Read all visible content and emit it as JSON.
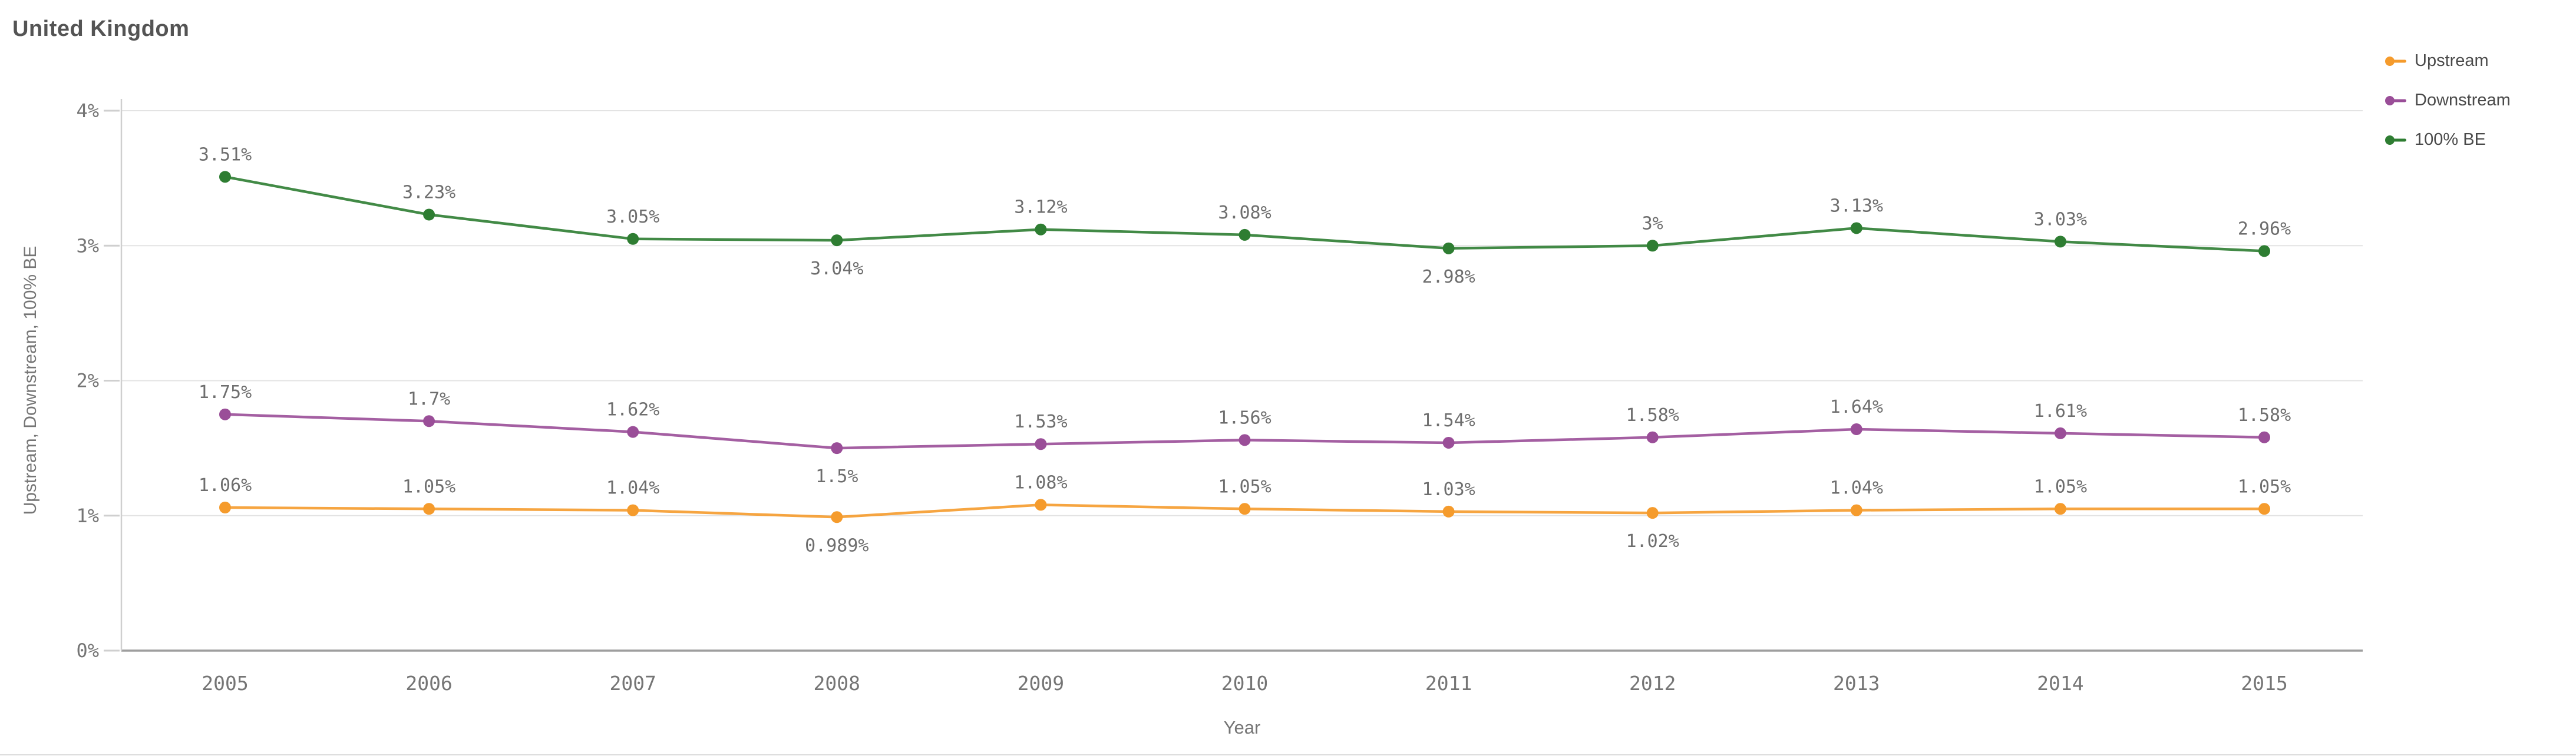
{
  "title": "United Kingdom",
  "chart_data": {
    "type": "line",
    "title": "United Kingdom",
    "xlabel": "Year",
    "ylabel": "Upstream, Downstream, 100% BE",
    "categories": [
      "2005",
      "2006",
      "2007",
      "2008",
      "2009",
      "2010",
      "2011",
      "2012",
      "2013",
      "2014",
      "2015"
    ],
    "ylim": [
      0,
      4
    ],
    "y_ticks": [
      {
        "value": 0,
        "label": "0%"
      },
      {
        "value": 1,
        "label": "1%"
      },
      {
        "value": 2,
        "label": "2%"
      },
      {
        "value": 3,
        "label": "3%"
      },
      {
        "value": 4,
        "label": "4%"
      }
    ],
    "grid": "horizontal",
    "legend_position": "top-right",
    "series": [
      {
        "name": "Upstream",
        "color": "#F59B2C",
        "values": [
          1.06,
          1.05,
          1.04,
          0.989,
          1.08,
          1.05,
          1.03,
          1.02,
          1.04,
          1.05,
          1.05
        ],
        "labels": [
          "1.06%",
          "1.05%",
          "1.04%",
          "0.989%",
          "1.08%",
          "1.05%",
          "1.03%",
          "1.02%",
          "1.04%",
          "1.05%",
          "1.05%"
        ],
        "label_positions": [
          "above",
          "above",
          "above",
          "below",
          "above",
          "above",
          "above",
          "below",
          "above",
          "above",
          "above"
        ]
      },
      {
        "name": "Downstream",
        "color": "#9A4E98",
        "values": [
          1.75,
          1.7,
          1.62,
          1.5,
          1.53,
          1.56,
          1.54,
          1.58,
          1.64,
          1.61,
          1.58
        ],
        "labels": [
          "1.75%",
          "1.7%",
          "1.62%",
          "1.5%",
          "1.53%",
          "1.56%",
          "1.54%",
          "1.58%",
          "1.64%",
          "1.61%",
          "1.58%"
        ],
        "label_positions": [
          "above",
          "above",
          "above",
          "below",
          "above",
          "above",
          "above",
          "above",
          "above",
          "above",
          "above"
        ]
      },
      {
        "name": "100% BE",
        "color": "#2E7D32",
        "values": [
          3.51,
          3.23,
          3.05,
          3.04,
          3.12,
          3.08,
          2.98,
          3.0,
          3.13,
          3.03,
          2.96
        ],
        "labels": [
          "3.51%",
          "3.23%",
          "3.05%",
          "3.04%",
          "3.12%",
          "3.08%",
          "2.98%",
          "3%",
          "3.13%",
          "3.03%",
          "2.96%"
        ],
        "label_positions": [
          "above",
          "above",
          "above",
          "below",
          "above",
          "above",
          "below",
          "above",
          "above",
          "above",
          "above"
        ]
      }
    ]
  }
}
